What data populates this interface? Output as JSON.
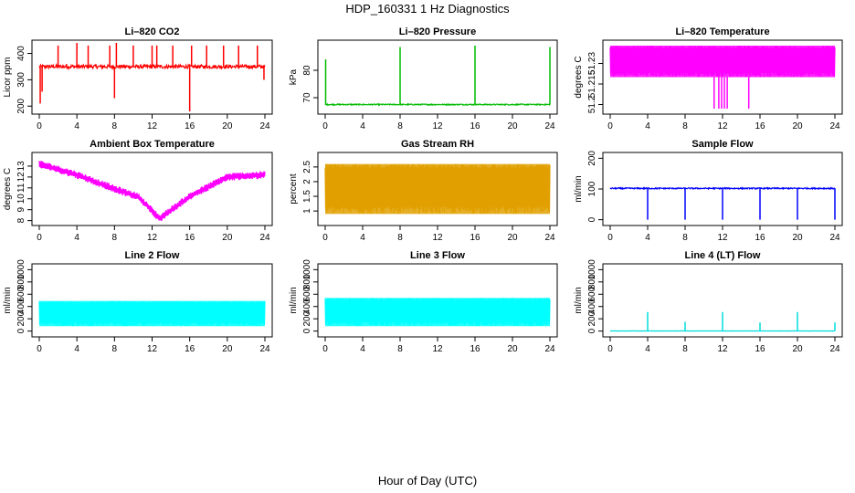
{
  "figure": {
    "title": "HDP_160331  1 Hz Diagnostics",
    "xlabel": "Hour of Day (UTC)"
  },
  "chart_data": [
    {
      "type": "line",
      "title": "Li–820 CO2",
      "ylabel": "Licor ppm",
      "color": "#ff0000",
      "xlim": [
        0,
        24
      ],
      "ylim": [
        180,
        440
      ],
      "xticks": [
        0,
        4,
        8,
        12,
        16,
        20,
        24
      ],
      "yticks": [
        200,
        300,
        400
      ],
      "baseline": 350,
      "noise": 7,
      "events": [
        [
          0.1,
          210
        ],
        [
          0.3,
          255
        ],
        [
          2,
          430
        ],
        [
          2.9,
          360
        ],
        [
          4,
          440
        ],
        [
          5.2,
          430
        ],
        [
          7.5,
          430
        ],
        [
          8,
          230
        ],
        [
          8.2,
          440
        ],
        [
          10,
          430
        ],
        [
          12,
          430
        ],
        [
          12.5,
          430
        ],
        [
          14.2,
          430
        ],
        [
          16,
          180
        ],
        [
          16.2,
          430
        ],
        [
          17.8,
          430
        ],
        [
          19.6,
          430
        ],
        [
          21.2,
          430
        ],
        [
          23.2,
          430
        ],
        [
          23.9,
          300
        ]
      ]
    },
    {
      "type": "line",
      "title": "Li–820 Pressure",
      "ylabel": "kPa",
      "color": "#00bb00",
      "xlim": [
        0,
        24
      ],
      "ylim": [
        65,
        90
      ],
      "xticks": [
        0,
        4,
        8,
        12,
        16,
        20,
        24
      ],
      "yticks": [
        70,
        80
      ],
      "baseline": 67.5,
      "noise": 0.2,
      "events": [
        [
          0.05,
          84
        ],
        [
          8,
          88.5
        ],
        [
          16,
          89
        ],
        [
          24,
          88.5
        ]
      ]
    },
    {
      "type": "band",
      "title": "Li–820 Temperature",
      "ylabel": "degrees C",
      "color": "#ff00ff",
      "xlim": [
        0,
        24
      ],
      "ylim": [
        51.195,
        51.245
      ],
      "xticks": [
        0,
        4,
        8,
        12,
        16,
        20,
        24
      ],
      "yticks": [
        51.2,
        51.215,
        51.23
      ],
      "band": [
        51.22,
        51.243
      ],
      "events": [
        [
          11.1,
          51.197
        ],
        [
          11.6,
          51.197
        ],
        [
          11.9,
          51.197
        ],
        [
          12.2,
          51.197
        ],
        [
          12.5,
          51.197
        ],
        [
          14.8,
          51.197
        ]
      ]
    },
    {
      "type": "line",
      "title": "Ambient Box Temperature",
      "ylabel": "degrees C",
      "color": "#ff00ff",
      "xlim": [
        0,
        24
      ],
      "ylim": [
        7.8,
        14
      ],
      "xticks": [
        0,
        4,
        8,
        12,
        16,
        20,
        24
      ],
      "yticks": [
        8,
        9,
        10,
        11,
        12,
        13
      ],
      "trend": [
        [
          0,
          13.2
        ],
        [
          4,
          12.2
        ],
        [
          8,
          10.9
        ],
        [
          10.5,
          10.2
        ],
        [
          12.8,
          8.2
        ],
        [
          16,
          10.2
        ],
        [
          20,
          12.0
        ],
        [
          24,
          12.2
        ]
      ],
      "noise": 0.35
    },
    {
      "type": "band",
      "title": "Gas Stream RH",
      "ylabel": "percent",
      "color": "#e0a000",
      "xlim": [
        0,
        24
      ],
      "ylim": [
        0.6,
        2.9
      ],
      "xticks": [
        0,
        4,
        8,
        12,
        16,
        20,
        24
      ],
      "yticks": [
        1.0,
        1.5,
        2.0,
        2.5
      ],
      "band": [
        0.9,
        2.6
      ]
    },
    {
      "type": "line",
      "title": "Sample Flow",
      "ylabel": "ml/min",
      "color": "#0000ff",
      "xlim": [
        0,
        24
      ],
      "ylim": [
        -10,
        210
      ],
      "xticks": [
        0,
        4,
        8,
        12,
        16,
        20,
        24
      ],
      "yticks": [
        0,
        100,
        200
      ],
      "baseline": 102,
      "noise": 2,
      "events": [
        [
          4,
          0
        ],
        [
          8,
          0
        ],
        [
          12,
          0
        ],
        [
          16,
          0
        ],
        [
          20,
          0
        ],
        [
          24,
          0
        ]
      ]
    },
    {
      "type": "band",
      "title": "Line 2 Flow",
      "ylabel": "ml/min",
      "color": "#00ffff",
      "xlim": [
        0,
        24
      ],
      "ylim": [
        -50,
        1050
      ],
      "xticks": [
        0,
        4,
        8,
        12,
        16,
        20,
        24
      ],
      "yticks": [
        0,
        200,
        400,
        600,
        800,
        1000
      ],
      "band": [
        80,
        490
      ]
    },
    {
      "type": "band",
      "title": "Line 3 Flow",
      "ylabel": "ml/min",
      "color": "#00ffff",
      "xlim": [
        0,
        24
      ],
      "ylim": [
        -50,
        1050
      ],
      "xticks": [
        0,
        4,
        8,
        12,
        16,
        20,
        24
      ],
      "yticks": [
        0,
        200,
        400,
        600,
        800,
        1000
      ],
      "band": [
        80,
        540
      ]
    },
    {
      "type": "line",
      "title": "Line 4 (LT) Flow",
      "ylabel": "ml/min",
      "color": "#00dddd",
      "xlim": [
        0,
        24
      ],
      "ylim": [
        -50,
        1050
      ],
      "xticks": [
        0,
        4,
        8,
        12,
        16,
        20,
        24
      ],
      "yticks": [
        0,
        200,
        400,
        600,
        800,
        1000
      ],
      "baseline": 2,
      "noise": 1,
      "events": [
        [
          4,
          310
        ],
        [
          8,
          150
        ],
        [
          12,
          310
        ],
        [
          16,
          140
        ],
        [
          20,
          310
        ],
        [
          24,
          140
        ]
      ]
    }
  ]
}
